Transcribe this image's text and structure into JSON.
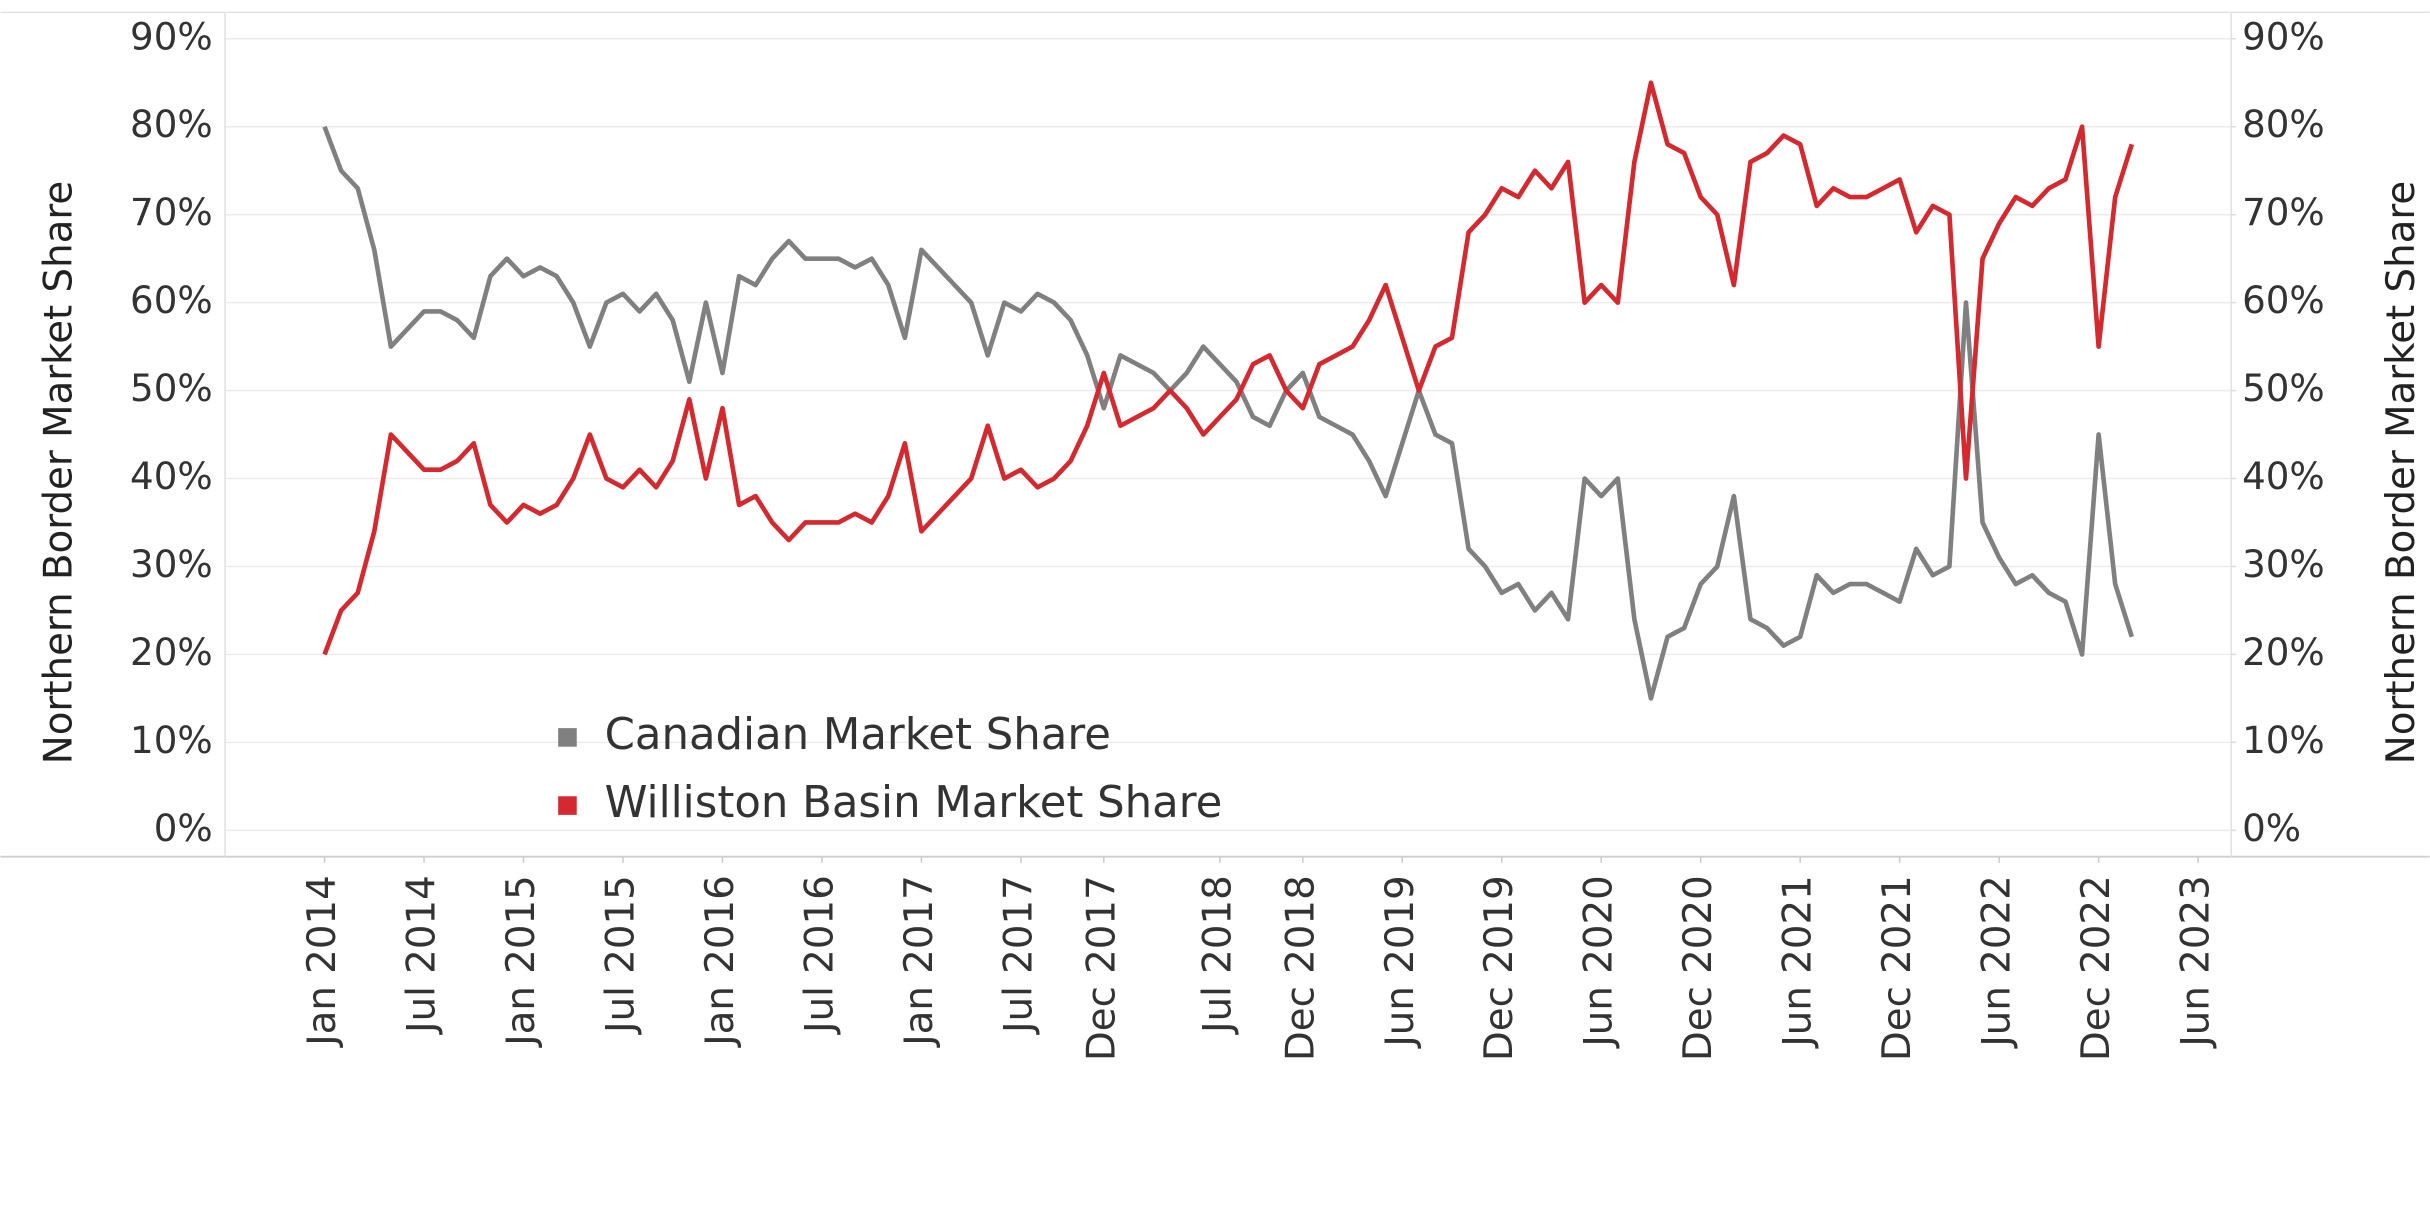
{
  "chart_data": {
    "type": "line",
    "y_label": "Northern Border Market Share",
    "y2_label": "Northern Border Market Share",
    "x": [
      "2014-01",
      "2014-02",
      "2014-03",
      "2014-04",
      "2014-05",
      "2014-06",
      "2014-07",
      "2014-08",
      "2014-09",
      "2014-10",
      "2014-11",
      "2014-12",
      "2015-01",
      "2015-02",
      "2015-03",
      "2015-04",
      "2015-05",
      "2015-06",
      "2015-07",
      "2015-08",
      "2015-09",
      "2015-10",
      "2015-11",
      "2015-12",
      "2016-01",
      "2016-02",
      "2016-03",
      "2016-04",
      "2016-05",
      "2016-06",
      "2016-07",
      "2016-08",
      "2016-09",
      "2016-10",
      "2016-11",
      "2016-12",
      "2017-01",
      "2017-02",
      "2017-03",
      "2017-04",
      "2017-05",
      "2017-06",
      "2017-07",
      "2017-08",
      "2017-09",
      "2017-10",
      "2017-11",
      "2017-12",
      "2018-01",
      "2018-02",
      "2018-03",
      "2018-04",
      "2018-05",
      "2018-06",
      "2018-07",
      "2018-08",
      "2018-09",
      "2018-10",
      "2018-11",
      "2018-12",
      "2019-01",
      "2019-02",
      "2019-03",
      "2019-04",
      "2019-05",
      "2019-06",
      "2019-07",
      "2019-08",
      "2019-09",
      "2019-10",
      "2019-11",
      "2019-12",
      "2020-01",
      "2020-02",
      "2020-03",
      "2020-04",
      "2020-05",
      "2020-06",
      "2020-07",
      "2020-08",
      "2020-09",
      "2020-10",
      "2020-11",
      "2020-12",
      "2021-01",
      "2021-02",
      "2021-03",
      "2021-04",
      "2021-05",
      "2021-06",
      "2021-07",
      "2021-08",
      "2021-09",
      "2021-10",
      "2021-11",
      "2021-12",
      "2022-01",
      "2022-02",
      "2022-03",
      "2022-04",
      "2022-05",
      "2022-06",
      "2022-07",
      "2022-08",
      "2022-09",
      "2022-10",
      "2022-11",
      "2022-12",
      "2023-01",
      "2023-02"
    ],
    "series": [
      {
        "name": "Canadian Market Share",
        "color": "#808080",
        "axis": "y",
        "values": [
          80,
          75,
          73,
          66,
          55,
          57,
          59,
          59,
          58,
          56,
          63,
          65,
          63,
          64,
          63,
          60,
          55,
          60,
          61,
          59,
          61,
          58,
          51,
          60,
          52,
          63,
          62,
          65,
          67,
          65,
          65,
          65,
          64,
          65,
          62,
          56,
          66,
          64,
          62,
          60,
          54,
          60,
          59,
          61,
          60,
          58,
          54,
          48,
          54,
          53,
          52,
          50,
          52,
          55,
          53,
          51,
          47,
          46,
          50,
          52,
          47,
          46,
          45,
          42,
          38,
          44,
          50,
          45,
          44,
          32,
          30,
          27,
          28,
          25,
          27,
          24,
          40,
          38,
          40,
          24,
          15,
          22,
          23,
          28,
          30,
          38,
          24,
          23,
          21,
          22,
          29,
          27,
          28,
          28,
          27,
          26,
          32,
          29,
          30,
          60,
          35,
          31,
          28,
          29,
          27,
          26,
          20,
          45,
          28,
          22
        ]
      },
      {
        "name": "Williston Basin Market Share",
        "color": "#d42a2f",
        "axis": "y2",
        "values": [
          20,
          25,
          27,
          34,
          45,
          43,
          41,
          41,
          42,
          44,
          37,
          35,
          37,
          36,
          37,
          40,
          45,
          40,
          39,
          41,
          39,
          42,
          49,
          40,
          48,
          37,
          38,
          35,
          33,
          35,
          35,
          35,
          36,
          35,
          38,
          44,
          34,
          36,
          38,
          40,
          46,
          40,
          41,
          39,
          40,
          42,
          46,
          52,
          46,
          47,
          48,
          50,
          48,
          45,
          47,
          49,
          53,
          54,
          50,
          48,
          53,
          54,
          55,
          58,
          62,
          56,
          50,
          55,
          56,
          68,
          70,
          73,
          72,
          75,
          73,
          76,
          60,
          62,
          60,
          76,
          85,
          78,
          77,
          72,
          70,
          62,
          76,
          77,
          79,
          78,
          71,
          73,
          72,
          72,
          73,
          74,
          68,
          71,
          70,
          40,
          65,
          69,
          72,
          71,
          73,
          74,
          80,
          55,
          72,
          78
        ]
      }
    ],
    "xlim": [
      "2013-07",
      "2023-08"
    ],
    "xticks": [
      {
        "value": "2014-01",
        "label": "Jan 2014"
      },
      {
        "value": "2014-07",
        "label": "Jul 2014"
      },
      {
        "value": "2015-01",
        "label": "Jan 2015"
      },
      {
        "value": "2015-07",
        "label": "Jul 2015"
      },
      {
        "value": "2016-01",
        "label": "Jan 2016"
      },
      {
        "value": "2016-07",
        "label": "Jul 2016"
      },
      {
        "value": "2017-01",
        "label": "Jan 2017"
      },
      {
        "value": "2017-07",
        "label": "Jul 2017"
      },
      {
        "value": "2017-12",
        "label": "Dec 2017"
      },
      {
        "value": "2018-07",
        "label": "Jul 2018"
      },
      {
        "value": "2018-12",
        "label": "Dec 2018"
      },
      {
        "value": "2019-06",
        "label": "Jun 2019"
      },
      {
        "value": "2019-12",
        "label": "Dec 2019"
      },
      {
        "value": "2020-06",
        "label": "Jun 2020"
      },
      {
        "value": "2020-12",
        "label": "Dec 2020"
      },
      {
        "value": "2021-06",
        "label": "Jun 2021"
      },
      {
        "value": "2021-12",
        "label": "Dec 2021"
      },
      {
        "value": "2022-06",
        "label": "Jun 2022"
      },
      {
        "value": "2022-12",
        "label": "Dec 2022"
      },
      {
        "value": "2023-06",
        "label": "Jun 2023"
      }
    ],
    "ylim": [
      -3,
      93
    ],
    "yticks": [
      {
        "value": 0,
        "label": "0%"
      },
      {
        "value": 10,
        "label": "10%"
      },
      {
        "value": 20,
        "label": "20%"
      },
      {
        "value": 30,
        "label": "30%"
      },
      {
        "value": 40,
        "label": "40%"
      },
      {
        "value": 50,
        "label": "50%"
      },
      {
        "value": 60,
        "label": "60%"
      },
      {
        "value": 70,
        "label": "70%"
      },
      {
        "value": 80,
        "label": "80%"
      },
      {
        "value": 90,
        "label": "90%"
      }
    ],
    "y2lim": [
      -3,
      93
    ],
    "y2ticks": [
      {
        "value": 0,
        "label": "0%"
      },
      {
        "value": 10,
        "label": "10%"
      },
      {
        "value": 20,
        "label": "20%"
      },
      {
        "value": 30,
        "label": "30%"
      },
      {
        "value": 40,
        "label": "40%"
      },
      {
        "value": 50,
        "label": "50%"
      },
      {
        "value": 60,
        "label": "60%"
      },
      {
        "value": 70,
        "label": "70%"
      },
      {
        "value": 80,
        "label": "80%"
      },
      {
        "value": 90,
        "label": "90%"
      }
    ],
    "grid": true,
    "legend_position": "inside"
  }
}
